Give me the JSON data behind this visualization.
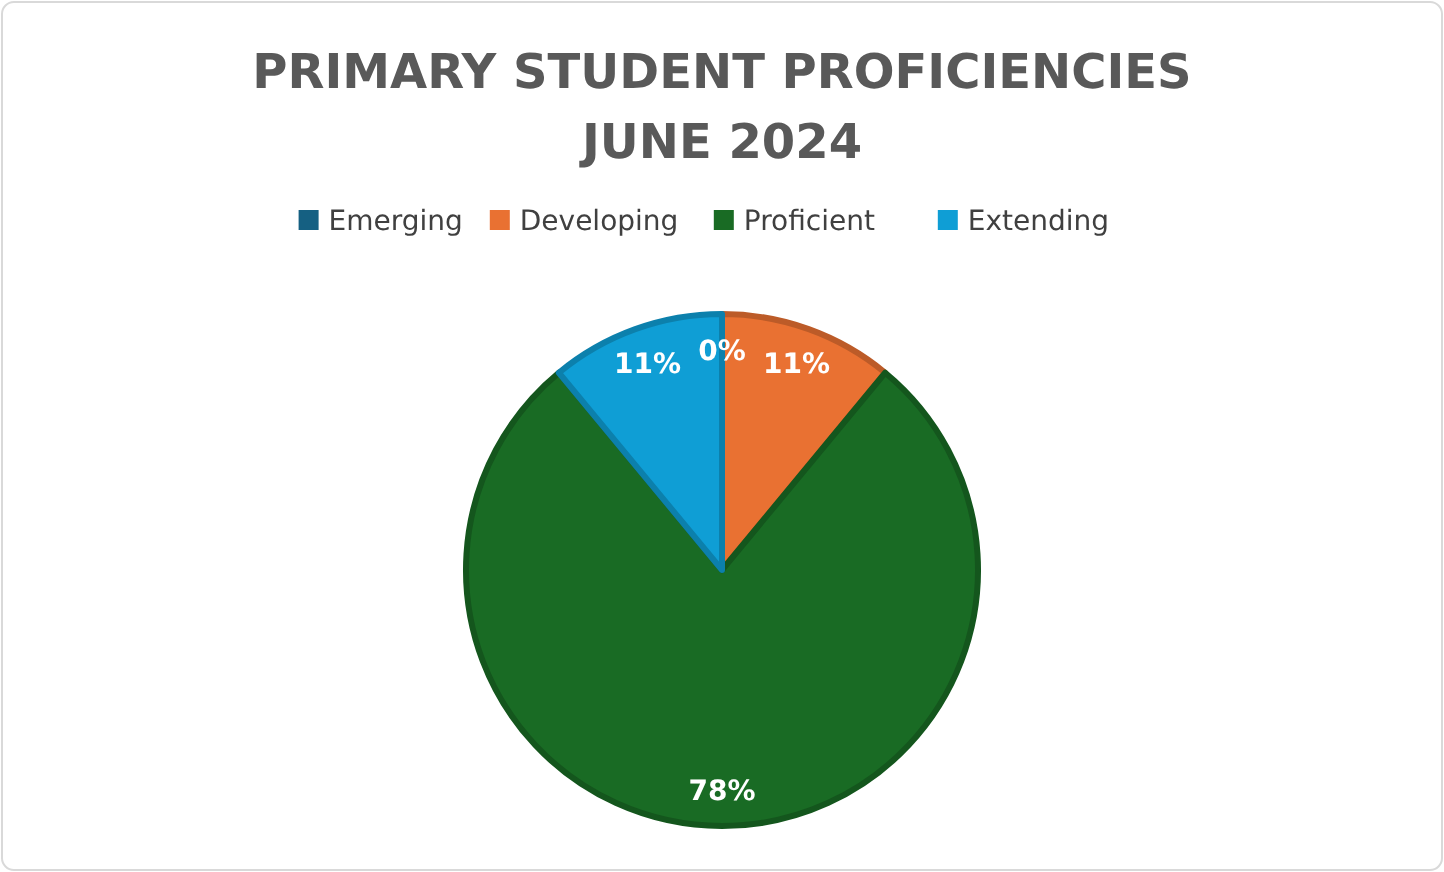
{
  "chart_data": {
    "type": "pie",
    "title": "PRIMARY STUDENT PROFICIENCIES\nJUNE 2024",
    "categories": [
      "Emerging",
      "Developing",
      "Proficient",
      "Extending"
    ],
    "values": [
      0,
      11,
      78,
      11
    ],
    "colors": [
      "#156082",
      "#e97132",
      "#196b24",
      "#0f9ed5"
    ],
    "value_labels": [
      "0%",
      "11%",
      "78%",
      "11%"
    ],
    "legend": "top"
  }
}
